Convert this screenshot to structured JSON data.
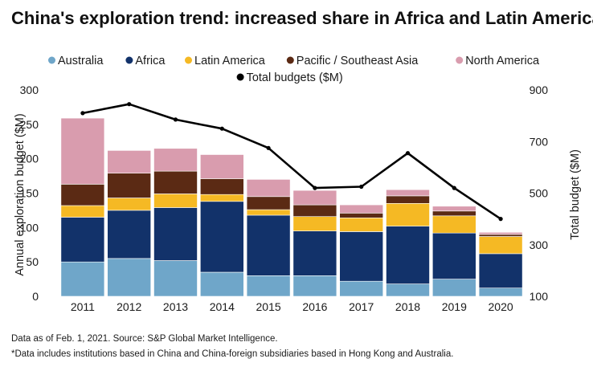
{
  "chart_data": {
    "type": "bar",
    "title": "China's exploration trend: increased share in Africa and Latin America",
    "categories": [
      "2011",
      "2012",
      "2013",
      "2014",
      "2015",
      "2016",
      "2017",
      "2018",
      "2019",
      "2020"
    ],
    "stacked": true,
    "ylabel": "Annual exploration budget ($M)",
    "ylim": [
      0,
      300
    ],
    "yticks": [
      "0",
      "50",
      "100",
      "150",
      "200",
      "250",
      "300"
    ],
    "y2label": "Total budget ($M)",
    "y2lim": [
      100,
      900
    ],
    "y2ticks": [
      "100",
      "300",
      "500",
      "700",
      "900"
    ],
    "legend_position": "top",
    "series": [
      {
        "name": "Australia",
        "color": "#6fa6c9",
        "values": [
          50,
          55,
          52,
          35,
          30,
          30,
          22,
          18,
          25,
          12
        ]
      },
      {
        "name": "Africa",
        "color": "#12326a",
        "values": [
          65,
          70,
          77,
          103,
          88,
          65,
          72,
          84,
          67,
          50
        ]
      },
      {
        "name": "Latin America",
        "color": "#f5b924",
        "values": [
          17,
          18,
          20,
          10,
          8,
          21,
          20,
          33,
          25,
          25
        ]
      },
      {
        "name": "Pacific / Southeast Asia",
        "color": "#5b2a14",
        "values": [
          31,
          36,
          33,
          23,
          19,
          17,
          7,
          11,
          7,
          3
        ]
      },
      {
        "name": "North America",
        "color": "#d99cae",
        "values": [
          96,
          33,
          33,
          35,
          25,
          21,
          12,
          9,
          7,
          3
        ]
      }
    ],
    "line": {
      "name": "Total budgets ($M)",
      "color": "#000000",
      "axis": "right",
      "values": [
        810,
        845,
        785,
        750,
        675,
        520,
        525,
        655,
        520,
        400
      ]
    },
    "grid": false
  },
  "footnotes": {
    "line1": "Data as of Feb. 1, 2021. Source: S&P Global Market Intelligence.",
    "line2": "*Data includes institutions based in China and China-foreign subsidiaries based in Hong Kong and Australia."
  }
}
